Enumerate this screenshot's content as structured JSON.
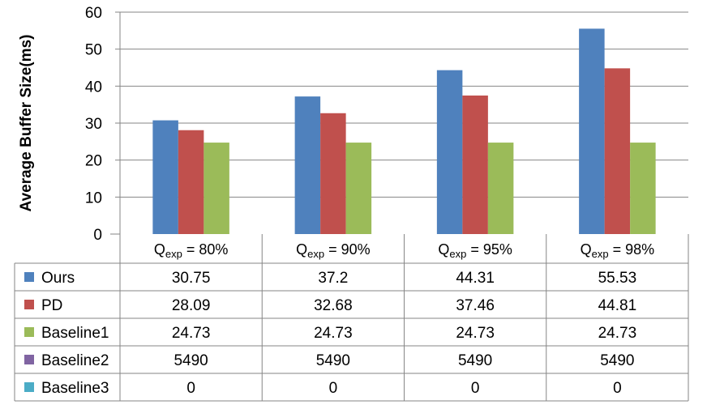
{
  "chart_data": {
    "type": "bar",
    "ylabel": "Average Buffer Size(ms)",
    "ylim": [
      0,
      60
    ],
    "yticks": [
      0,
      10,
      20,
      30,
      40,
      50,
      60
    ],
    "grid": true,
    "categories": [
      {
        "main": "Q",
        "sub": "exp",
        "suffix": " = 80%"
      },
      {
        "main": "Q",
        "sub": "exp",
        "suffix": " = 90%"
      },
      {
        "main": "Q",
        "sub": "exp",
        "suffix": " = 95%"
      },
      {
        "main": "Q",
        "sub": "exp",
        "suffix": " = 98%"
      }
    ],
    "series": [
      {
        "name": "Ours",
        "color": "#4f81bd",
        "values": [
          30.75,
          37.2,
          44.31,
          55.53
        ],
        "labels": [
          "30.75",
          "37.2",
          "44.31",
          "55.53"
        ],
        "plotted": true
      },
      {
        "name": "PD",
        "color": "#c0504d",
        "values": [
          28.09,
          32.68,
          37.46,
          44.81
        ],
        "labels": [
          "28.09",
          "32.68",
          "37.46",
          "44.81"
        ],
        "plotted": true
      },
      {
        "name": "Baseline1",
        "color": "#9bbb59",
        "values": [
          24.73,
          24.73,
          24.73,
          24.73
        ],
        "labels": [
          "24.73",
          "24.73",
          "24.73",
          "24.73"
        ],
        "plotted": true
      },
      {
        "name": "Baseline2",
        "color": "#8064a2",
        "values": [
          5490,
          5490,
          5490,
          5490
        ],
        "labels": [
          "5490",
          "5490",
          "5490",
          "5490"
        ],
        "plotted": false
      },
      {
        "name": "Baseline3",
        "color": "#4bacc6",
        "values": [
          0,
          0,
          0,
          0
        ],
        "labels": [
          "0",
          "0",
          "0",
          "0"
        ],
        "plotted": false
      }
    ]
  }
}
